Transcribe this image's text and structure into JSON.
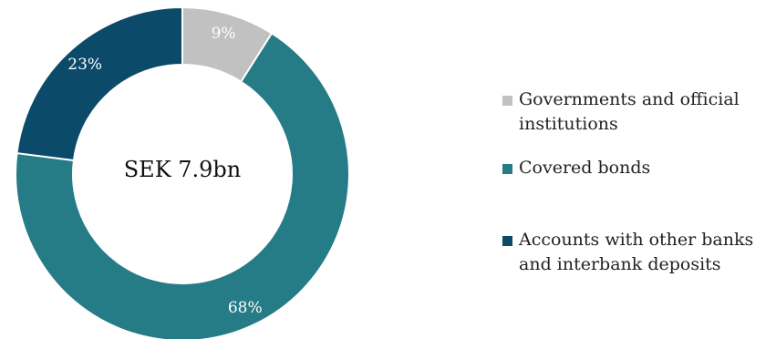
{
  "chart_data": {
    "type": "pie",
    "center_label": "SEK 7.9bn",
    "legend_position": "right",
    "categories": [
      "Governments and official institutions",
      "Covered bonds",
      "Accounts with other banks and interbank deposits"
    ],
    "values": [
      9,
      68,
      23
    ],
    "value_labels": [
      "9%",
      "68%",
      "23%"
    ],
    "colors": [
      "#c1c1c1",
      "#257c87",
      "#0b4a68"
    ]
  },
  "legend": {
    "items": [
      {
        "label": "Governments and official institutions",
        "color": "#c1c1c1"
      },
      {
        "label": "Covered bonds",
        "color": "#257c87"
      },
      {
        "label": "Accounts with other banks and interbank deposits",
        "color": "#0b4a68"
      }
    ]
  }
}
